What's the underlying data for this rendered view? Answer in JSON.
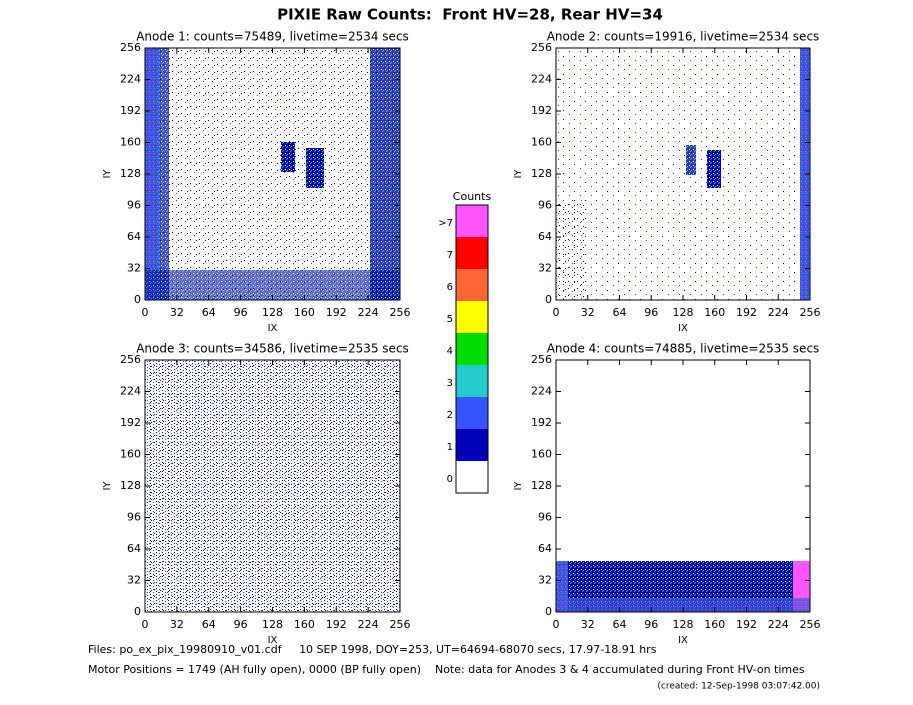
{
  "title": "PIXIE Raw Counts:  Front HV=28, Rear HV=34",
  "chart_data": [
    {
      "type": "heatmap",
      "title": "Anode 1: counts=75489, livetime=2534 secs",
      "xlabel": "IX",
      "ylabel": "IY",
      "xlim": [
        0,
        256
      ],
      "ylim": [
        0,
        256
      ],
      "xticks": [
        0,
        32,
        64,
        96,
        128,
        160,
        192,
        224,
        256
      ],
      "yticks": [
        0,
        32,
        64,
        96,
        128,
        160,
        192,
        224,
        256
      ]
    },
    {
      "type": "heatmap",
      "title": "Anode 2: counts=19916, livetime=2534 secs",
      "xlabel": "IX",
      "ylabel": "IY",
      "xlim": [
        0,
        256
      ],
      "ylim": [
        0,
        256
      ],
      "xticks": [
        0,
        32,
        64,
        96,
        128,
        160,
        192,
        224,
        256
      ],
      "yticks": [
        0,
        32,
        64,
        96,
        128,
        160,
        192,
        224,
        256
      ]
    },
    {
      "type": "heatmap",
      "title": "Anode 3: counts=34586, livetime=2535 secs",
      "xlabel": "IX",
      "ylabel": "IY",
      "xlim": [
        0,
        256
      ],
      "ylim": [
        0,
        256
      ],
      "xticks": [
        0,
        32,
        64,
        96,
        128,
        160,
        192,
        224,
        256
      ],
      "yticks": [
        0,
        32,
        64,
        96,
        128,
        160,
        192,
        224,
        256
      ]
    },
    {
      "type": "heatmap",
      "title": "Anode 4: counts=74885, livetime=2535 secs",
      "xlabel": "IX",
      "ylabel": "IY",
      "xlim": [
        0,
        256
      ],
      "ylim": [
        0,
        256
      ],
      "xticks": [
        0,
        32,
        64,
        96,
        128,
        160,
        192,
        224,
        256
      ],
      "yticks": [
        0,
        32,
        64,
        96,
        128,
        160,
        192,
        224,
        256
      ]
    }
  ],
  "colorbar": {
    "title": "Counts",
    "labels": [
      ">7",
      "7",
      "6",
      "5",
      "4",
      "3",
      "2",
      "1",
      "0"
    ],
    "colors": [
      "#ff55ff",
      "#ff0000",
      "#ff6633",
      "#ffff00",
      "#00dd00",
      "#22cccc",
      "#3355ff",
      "#0000bb",
      "#ffffff"
    ]
  },
  "footer": [
    "Files: po_ex_pix_19980910_v01.cdf     10 SEP 1998, DOY=253, UT=64694-68070 secs, 17.97-18.91 hrs",
    "Motor Positions = 1749 (AH fully open), 0000 (BP fully open)    Note: data for Anodes 3 & 4 accumulated during Front HV-on times",
    "(created: 12-Sep-1998 03:07:42.00)"
  ]
}
